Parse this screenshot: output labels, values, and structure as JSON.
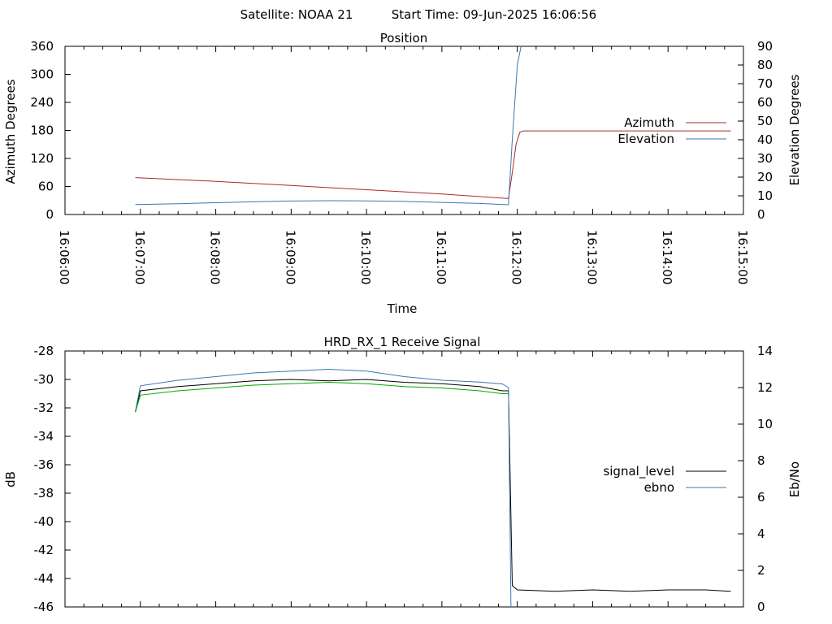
{
  "header": {
    "satellite": "Satellite: NOAA 21",
    "start_time": "Start Time: 09-Jun-2025 16:06:56"
  },
  "chart_data": [
    {
      "type": "line",
      "title": "Position",
      "xlabel": "Time",
      "ylabel": "Azimuth Degrees",
      "y2label": "Elevation Degrees",
      "xlim": [
        "16:06:00",
        "16:15:00"
      ],
      "x_ticks": [
        "16:06:00",
        "16:07:00",
        "16:08:00",
        "16:09:00",
        "16:10:00",
        "16:11:00",
        "16:12:00",
        "16:13:00",
        "16:14:00",
        "16:15:00"
      ],
      "ylim": [
        0,
        360
      ],
      "y_ticks": [
        "0",
        "60",
        "120",
        "180",
        "240",
        "300",
        "360"
      ],
      "y2lim": [
        0,
        90
      ],
      "y2_ticks": [
        "0",
        "10",
        "20",
        "30",
        "40",
        "50",
        "60",
        "70",
        "80",
        "90"
      ],
      "grid": false,
      "legend_position": "right",
      "series": [
        {
          "name": "Azimuth",
          "axis": "y",
          "color": "#a62b2b",
          "x": [
            "16:06:56",
            "16:08:00",
            "16:09:00",
            "16:10:00",
            "16:11:00",
            "16:11:53",
            "16:11:56",
            "16:11:59",
            "16:12:02",
            "16:12:05",
            "16:13:00",
            "16:14:00",
            "16:14:50"
          ],
          "values": [
            79,
            71,
            62,
            53,
            44,
            34,
            90,
            150,
            176,
            179,
            179,
            179,
            179
          ]
        },
        {
          "name": "Elevation",
          "axis": "y2",
          "color": "#3a77b0",
          "x": [
            "16:06:56",
            "16:07:30",
            "16:08:00",
            "16:08:30",
            "16:09:00",
            "16:09:30",
            "16:10:00",
            "16:10:30",
            "16:11:00",
            "16:11:30",
            "16:11:53",
            "16:11:56",
            "16:12:00",
            "16:12:03"
          ],
          "values": [
            5.3,
            5.8,
            6.3,
            6.8,
            7.2,
            7.4,
            7.3,
            7.0,
            6.5,
            5.9,
            5.2,
            40,
            80,
            90
          ]
        }
      ]
    },
    {
      "type": "line",
      "title": "HRD_RX_1 Receive Signal",
      "ylabel": "dB",
      "y2label": "Eb/No",
      "xlim": [
        "16:06:00",
        "16:15:00"
      ],
      "ylim": [
        -46,
        -28
      ],
      "y_ticks": [
        "-28",
        "-30",
        "-32",
        "-34",
        "-36",
        "-38",
        "-40",
        "-42",
        "-44",
        "-46"
      ],
      "y2lim": [
        0,
        14
      ],
      "y2_ticks": [
        "0",
        "2",
        "4",
        "6",
        "8",
        "10",
        "12",
        "14"
      ],
      "grid": false,
      "legend_position": "right",
      "series": [
        {
          "name": "signal_level",
          "axis": "y",
          "color": "#000000",
          "x": [
            "16:06:56",
            "16:07:00",
            "16:07:30",
            "16:08:00",
            "16:08:30",
            "16:09:00",
            "16:09:30",
            "16:10:00",
            "16:10:30",
            "16:11:00",
            "16:11:30",
            "16:11:48",
            "16:11:53",
            "16:11:56",
            "16:12:00",
            "16:12:30",
            "16:13:00",
            "16:13:30",
            "16:14:00",
            "16:14:30",
            "16:14:50"
          ],
          "values": [
            -32.3,
            -30.8,
            -30.5,
            -30.3,
            -30.1,
            -30.0,
            -30.1,
            -30.0,
            -30.2,
            -30.3,
            -30.5,
            -30.8,
            -30.8,
            -44.5,
            -44.8,
            -44.9,
            -44.8,
            -44.9,
            -44.8,
            -44.8,
            -44.9
          ]
        },
        {
          "name": "ebno",
          "axis": "y2",
          "color": "#3a77b0",
          "x": [
            "16:06:56",
            "16:07:00",
            "16:07:30",
            "16:08:00",
            "16:08:30",
            "16:09:00",
            "16:09:30",
            "16:10:00",
            "16:10:30",
            "16:11:00",
            "16:11:30",
            "16:11:48",
            "16:11:53",
            "16:11:55"
          ],
          "values": [
            10.7,
            12.1,
            12.4,
            12.6,
            12.8,
            12.9,
            13.0,
            12.9,
            12.6,
            12.4,
            12.3,
            12.2,
            12.0,
            0
          ]
        },
        {
          "name": "",
          "axis": "y",
          "color": "#00aa00",
          "x": [
            "16:06:56",
            "16:07:00",
            "16:07:30",
            "16:08:00",
            "16:08:30",
            "16:09:00",
            "16:09:30",
            "16:10:00",
            "16:10:30",
            "16:11:00",
            "16:11:30",
            "16:11:48",
            "16:11:53"
          ],
          "values": [
            -32.3,
            -31.1,
            -30.8,
            -30.6,
            -30.4,
            -30.3,
            -30.2,
            -30.3,
            -30.5,
            -30.6,
            -30.8,
            -31.0,
            -31.0
          ]
        }
      ]
    }
  ]
}
